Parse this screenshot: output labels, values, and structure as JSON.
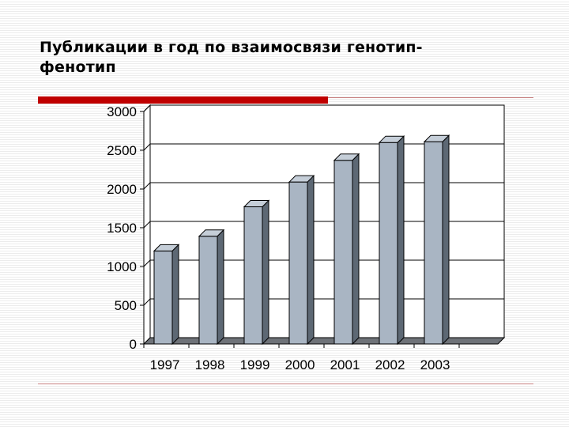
{
  "slide": {
    "title": "Публикации в год по взаимосвязи генотип-фенотип"
  },
  "colors": {
    "accent": "#c00000",
    "rule": "#c88080",
    "bar_front": "#a9b5c3",
    "bar_side": "#5d6874",
    "bar_top": "#c5ced8",
    "floor": "#6e7278",
    "gridline": "#000000"
  },
  "chart_data": {
    "type": "bar",
    "title": "",
    "xlabel": "",
    "ylabel": "",
    "categories": [
      "1997",
      "1998",
      "1999",
      "2000",
      "2001",
      "2002",
      "2003"
    ],
    "values": [
      1200,
      1390,
      1770,
      2090,
      2370,
      2600,
      2610
    ],
    "ylim": [
      0,
      3000
    ],
    "yticks": [
      "0",
      "500",
      "1000",
      "1500",
      "2000",
      "2500",
      "3000"
    ],
    "grid": true,
    "legend": "none",
    "style": "3d"
  }
}
